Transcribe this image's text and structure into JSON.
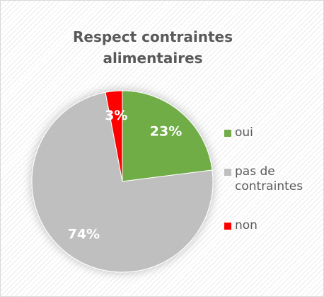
{
  "chart_data": {
    "type": "pie",
    "title": "Respect contraintes alimentaires",
    "categories": [
      "oui",
      "pas de contraintes",
      "non"
    ],
    "values": [
      23,
      74,
      3
    ],
    "value_labels": [
      "23%",
      "74%",
      "3%"
    ],
    "colors": [
      "#70ad47",
      "#bfbfbf",
      "#ff0000"
    ],
    "legend": "right"
  }
}
